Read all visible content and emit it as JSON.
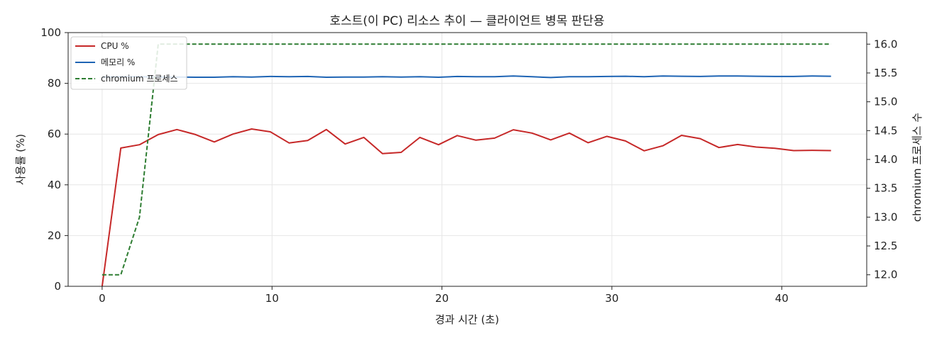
{
  "chart_data": {
    "type": "line",
    "title": "호스트(이 PC) 리소스 추이 — 클라이언트 병목 판단용",
    "xlabel": "경과 시간 (초)",
    "ylabel": "사용률 (%)",
    "y2label": "chromium 프로세스 수",
    "xlim": [
      -2,
      45
    ],
    "ylim": [
      0,
      100
    ],
    "y2lim": [
      11.8,
      16.2
    ],
    "x_ticks": [
      0,
      10,
      20,
      30,
      40
    ],
    "y_ticks": [
      0,
      20,
      40,
      60,
      80,
      100
    ],
    "y2_ticks": [
      "12.0",
      "12.5",
      "13.0",
      "13.5",
      "14.0",
      "14.5",
      "15.0",
      "15.5",
      "16.0"
    ],
    "grid": true,
    "legend_position": "upper-left",
    "series": [
      {
        "name": "CPU %",
        "axis": "left",
        "color": "#c62828",
        "dash": "solid",
        "x": [
          0.0,
          1.1,
          2.2,
          3.3,
          4.4,
          5.5,
          6.6,
          7.7,
          8.8,
          9.9,
          11.0,
          12.1,
          13.2,
          14.3,
          15.4,
          16.5,
          17.6,
          18.7,
          19.8,
          20.9,
          22.0,
          23.1,
          24.2,
          25.3,
          26.4,
          27.5,
          28.6,
          29.7,
          30.8,
          31.9,
          33.0,
          34.1,
          35.2,
          36.3,
          37.4,
          38.5,
          39.6,
          40.7,
          41.8,
          42.9
        ],
        "y": [
          0,
          54.5,
          55.8,
          59.8,
          61.8,
          59.8,
          56.9,
          60.0,
          62.0,
          60.9,
          56.5,
          57.5,
          61.8,
          56.1,
          58.7,
          52.3,
          52.8,
          58.7,
          55.8,
          59.4,
          57.6,
          58.4,
          61.7,
          60.4,
          57.7,
          60.4,
          56.6,
          59.1,
          57.3,
          53.4,
          55.4,
          59.5,
          58.2,
          54.7,
          55.9,
          54.9,
          54.4,
          53.5,
          53.6,
          53.5
        ]
      },
      {
        "name": "메모리 %",
        "axis": "left",
        "color": "#1e64b4",
        "dash": "solid",
        "x": [
          0.0,
          1.1,
          2.2,
          3.3,
          4.4,
          5.5,
          6.6,
          7.7,
          8.8,
          9.9,
          11.0,
          12.1,
          13.2,
          14.3,
          15.4,
          16.5,
          17.6,
          18.7,
          19.8,
          20.9,
          22.0,
          23.1,
          24.2,
          25.3,
          26.4,
          27.5,
          28.6,
          29.7,
          30.8,
          31.9,
          33.0,
          34.1,
          35.2,
          36.3,
          37.4,
          38.5,
          39.6,
          40.7,
          41.8,
          42.9
        ],
        "y": [
          82.5,
          82.6,
          82.6,
          82.5,
          82.5,
          82.4,
          82.4,
          82.6,
          82.5,
          82.7,
          82.6,
          82.7,
          82.4,
          82.5,
          82.5,
          82.6,
          82.5,
          82.6,
          82.4,
          82.7,
          82.6,
          82.6,
          82.9,
          82.6,
          82.3,
          82.6,
          82.6,
          82.7,
          82.8,
          82.6,
          82.9,
          82.8,
          82.7,
          82.9,
          82.9,
          82.8,
          82.7,
          82.7,
          82.9,
          82.8
        ]
      },
      {
        "name": "chromium 프로세스",
        "axis": "right",
        "color": "#2e7d32",
        "dash": "dashed",
        "x": [
          0.0,
          1.1,
          2.2,
          3.3,
          42.9
        ],
        "y": [
          12,
          12,
          13,
          16,
          16
        ]
      }
    ]
  }
}
